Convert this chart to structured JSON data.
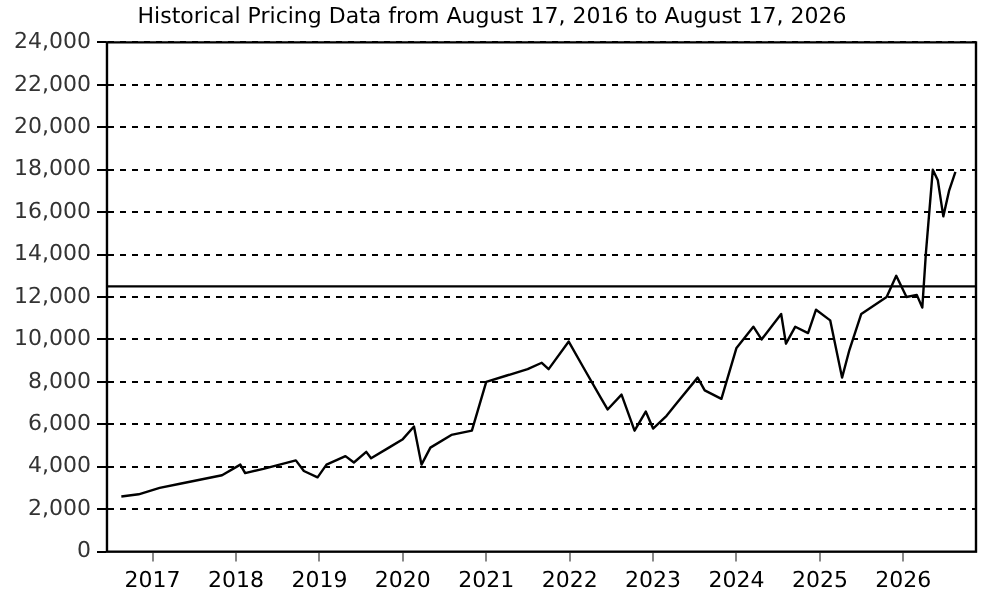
{
  "chart_data": {
    "type": "line",
    "title": "Historical Pricing Data from August 17, 2016 to August 17, 2026",
    "x": [
      "2016-08-17",
      "2016-11-01",
      "2017-02-01",
      "2017-05-01",
      "2017-08-01",
      "2017-11-01",
      "2018-01-20",
      "2018-02-10",
      "2018-05-01",
      "2018-09-20",
      "2018-10-25",
      "2018-12-24",
      "2019-02-01",
      "2019-04-25",
      "2019-06-01",
      "2019-07-25",
      "2019-08-15",
      "2019-11-01",
      "2020-01-01",
      "2020-02-19",
      "2020-03-23",
      "2020-05-01",
      "2020-08-01",
      "2020-10-30",
      "2021-01-01",
      "2021-04-01",
      "2021-07-01",
      "2021-09-01",
      "2021-10-01",
      "2021-12-28",
      "2022-03-01",
      "2022-05-20",
      "2022-06-16",
      "2022-08-16",
      "2022-10-12",
      "2022-11-30",
      "2023-01-01",
      "2023-03-01",
      "2023-04-15",
      "2023-07-15",
      "2023-08-15",
      "2023-10-27",
      "2024-01-01",
      "2024-03-15",
      "2024-04-20",
      "2024-07-15",
      "2024-08-05",
      "2024-09-15",
      "2024-11-10",
      "2024-12-15",
      "2025-02-15",
      "2025-04-08",
      "2025-05-10",
      "2025-07-01",
      "2025-10-20",
      "2025-12-01",
      "2026-01-15",
      "2026-03-01",
      "2026-03-25",
      "2026-04-10",
      "2026-05-10",
      "2026-06-01",
      "2026-06-25",
      "2026-07-20",
      "2026-08-17"
    ],
    "series": [
      {
        "color": "#000000",
        "values": [
          2600,
          2700,
          3000,
          3200,
          3400,
          3600,
          4100,
          3700,
          3900,
          4300,
          3800,
          3500,
          4100,
          4500,
          4200,
          4700,
          4400,
          4900,
          5300,
          5900,
          4100,
          4900,
          5500,
          5700,
          8000,
          8300,
          8600,
          8900,
          8600,
          9900,
          8700,
          7200,
          6700,
          7400,
          5700,
          6600,
          5800,
          6400,
          7000,
          8200,
          7600,
          7200,
          9600,
          10600,
          10000,
          11200,
          9800,
          10600,
          10300,
          11400,
          10900,
          8200,
          9500,
          11200,
          12000,
          13000,
          12000,
          12100,
          11500,
          14100,
          18000,
          17500,
          15800,
          17000,
          17900
        ]
      }
    ],
    "xlim": [
      "2016-06-15",
      "2026-11-15"
    ],
    "xticks": [
      {
        "value": "2017-01-01",
        "label": "2017"
      },
      {
        "value": "2018-01-01",
        "label": "2018"
      },
      {
        "value": "2019-01-01",
        "label": "2019"
      },
      {
        "value": "2020-01-01",
        "label": "2020"
      },
      {
        "value": "2021-01-01",
        "label": "2021"
      },
      {
        "value": "2022-01-01",
        "label": "2022"
      },
      {
        "value": "2023-01-01",
        "label": "2023"
      },
      {
        "value": "2024-01-01",
        "label": "2024"
      },
      {
        "value": "2025-01-01",
        "label": "2025"
      },
      {
        "value": "2026-01-01",
        "label": "2026"
      }
    ],
    "ylim": [
      0,
      24000
    ],
    "yticks": [
      0,
      {
        "value": 2000,
        "label": "2,000"
      },
      {
        "value": 4000,
        "label": "4,000"
      },
      {
        "value": 6000,
        "label": "6,000"
      },
      {
        "value": 8000,
        "label": "8,000"
      },
      {
        "value": 10000,
        "label": "10,000"
      },
      {
        "value": 12000,
        "label": "12,000"
      },
      {
        "value": 14000,
        "label": "14,000"
      },
      {
        "value": 16000,
        "label": "16,000"
      },
      {
        "value": 18000,
        "label": "18,000"
      },
      {
        "value": 20000,
        "label": "20,000"
      },
      {
        "value": 22000,
        "label": "22,000"
      },
      {
        "value": 24000,
        "label": "24,000"
      }
    ],
    "ref_lines": [
      {
        "axis": "y",
        "value": 12500,
        "color": "#000000",
        "line_style": "solid"
      }
    ],
    "grid": "y",
    "legend": false,
    "marker": "none",
    "line_style": "solid"
  }
}
